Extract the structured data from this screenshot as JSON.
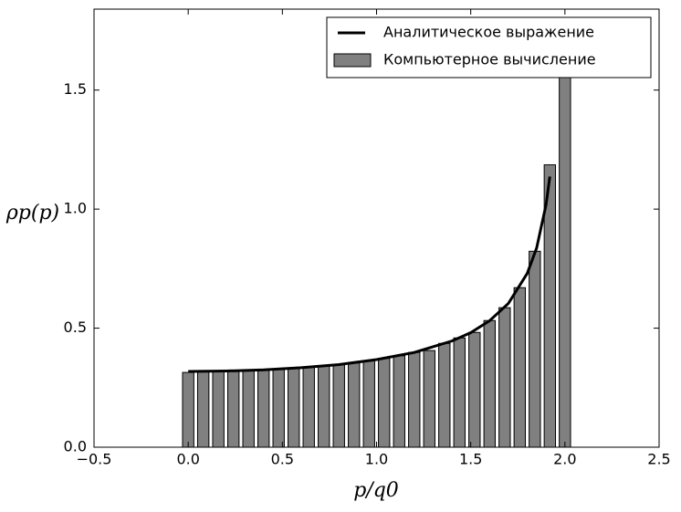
{
  "chart_data": {
    "type": "histogram",
    "xlabel": "p/q0",
    "ylabel": "ρp(p)",
    "bins": [
      -0.04,
      0.04,
      0.12,
      0.2,
      0.28,
      0.36,
      0.44,
      0.52,
      0.6,
      0.68,
      0.76,
      0.84,
      0.92,
      1.0,
      1.08,
      1.16,
      1.24,
      1.32,
      1.4,
      1.48,
      1.56,
      1.64,
      1.72,
      1.8,
      1.88,
      1.96,
      2.04
    ],
    "values": [
      0.314,
      0.316,
      0.318,
      0.32,
      0.322,
      0.325,
      0.328,
      0.332,
      0.336,
      0.341,
      0.347,
      0.354,
      0.363,
      0.373,
      0.384,
      0.398,
      0.406,
      0.436,
      0.459,
      0.482,
      0.532,
      0.586,
      0.67,
      0.823,
      1.186,
      1.6
    ],
    "name": "Компьютерное вычисление",
    "color": "#808080",
    "line": {
      "name": "Аналитическое выражение",
      "color": "#000000",
      "x": [
        0,
        0.2,
        0.4,
        0.6,
        0.8,
        1.0,
        1.2,
        1.4,
        1.5,
        1.6,
        1.7,
        1.8,
        1.85,
        1.9,
        1.92
      ],
      "values": [
        0.318,
        0.32,
        0.325,
        0.334,
        0.347,
        0.368,
        0.398,
        0.446,
        0.481,
        0.531,
        0.604,
        0.73,
        0.837,
        1.019,
        1.137
      ]
    },
    "xlim": [
      -0.5,
      2.5
    ],
    "ylim": [
      0,
      1.84
    ],
    "xticks": [
      {
        "value": -0.5,
        "label": "−0.5"
      },
      {
        "value": 0,
        "label": "0.0"
      },
      0.5,
      {
        "value": 1,
        "label": "1.0"
      },
      1.5,
      {
        "value": 2,
        "label": "2.0"
      },
      2.5
    ],
    "yticks": [
      {
        "value": 0,
        "label": "0.0"
      },
      0.5,
      {
        "value": 1,
        "label": "1.0"
      },
      1.5
    ],
    "legend": "upper right"
  }
}
